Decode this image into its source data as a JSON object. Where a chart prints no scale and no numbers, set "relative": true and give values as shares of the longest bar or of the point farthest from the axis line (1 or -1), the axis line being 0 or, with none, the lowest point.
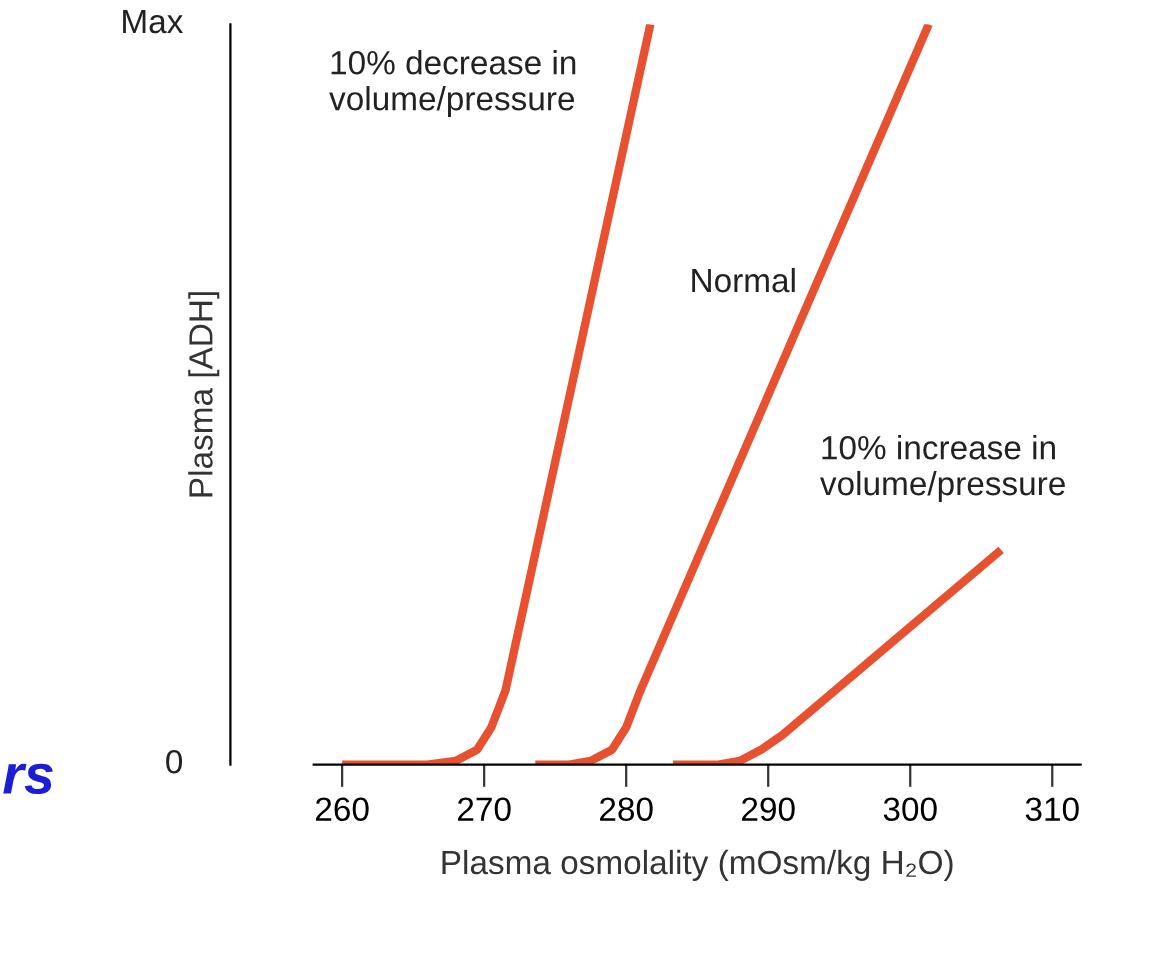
{
  "chart_data": {
    "type": "line",
    "xlabel": "Plasma osmolality (mOsm/kg H₂O)",
    "ylabel": "Plasma [ADH]",
    "xlim": [
      258,
      312
    ],
    "xticks": [
      260,
      270,
      280,
      290,
      300,
      310
    ],
    "relative": true,
    "grid": false,
    "legend": false,
    "marker": "none",
    "line_style": "solid",
    "series": [
      {
        "color": "#e8512f",
        "x": [
          260,
          266,
          268,
          269.5,
          270.5,
          271.5,
          281.7
        ],
        "values": [
          0,
          0,
          0.005,
          0.02,
          0.05,
          0.1,
          1.0
        ]
      },
      {
        "color": "#e8512f",
        "x": [
          273.6,
          276,
          277.5,
          279,
          280,
          281,
          301.3
        ],
        "values": [
          0,
          0,
          0.005,
          0.02,
          0.05,
          0.1,
          1.0
        ]
      },
      {
        "color": "#e8512f",
        "x": [
          283.3,
          286.5,
          288,
          289.5,
          291,
          306.4
        ],
        "values": [
          0,
          0,
          0.005,
          0.02,
          0.04,
          0.29
        ]
      }
    ],
    "annotations": [
      "10% decrease in\nvolume/pressure",
      "Normal",
      "10% increase in\nvolume/pressure",
      "rs",
      "0",
      "Max"
    ]
  }
}
